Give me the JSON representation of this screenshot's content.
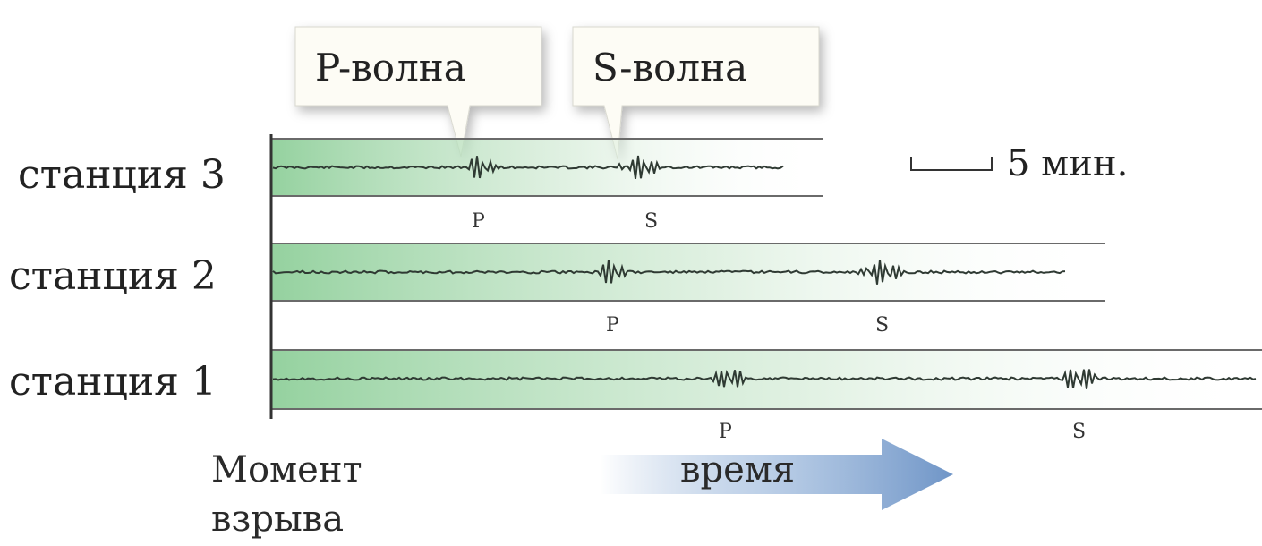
{
  "callouts": {
    "p_wave": "P-волна",
    "s_wave": "S-волна"
  },
  "stations": [
    {
      "label": "станция 3",
      "p_marker": "P",
      "s_marker": "S"
    },
    {
      "label": "станция 2",
      "p_marker": "P",
      "s_marker": "S"
    },
    {
      "label": "станция 1",
      "p_marker": "P",
      "s_marker": "S"
    }
  ],
  "scale": {
    "label": "5 мин."
  },
  "bottom": {
    "origin_line1": "Момент",
    "origin_line2": "взрыва",
    "time_label": "время"
  },
  "colors": {
    "panel_green": "#8fcf9a",
    "trace": "#2f3a33",
    "frame_line": "#6a6a6a",
    "arrow_blue": "#6f95c7"
  }
}
